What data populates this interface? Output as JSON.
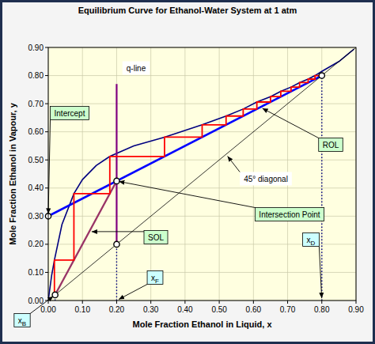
{
  "chart_data": {
    "type": "line",
    "title": "Equilibrium Curve for Ethanol-Water System at 1 atm",
    "x_label": "Mole Fraction Ethanol in Liquid, x",
    "y_label": "Mole Fraction Ethanol in Vapour, y",
    "xlim": [
      0,
      0.9
    ],
    "ylim": [
      0,
      0.9
    ],
    "xticks": [
      {
        "value": 0,
        "label": "0.00"
      },
      {
        "value": 0.1,
        "label": "0.10"
      },
      {
        "value": 0.2,
        "label": "0.20"
      },
      {
        "value": 0.3,
        "label": "0.30"
      },
      {
        "value": 0.4,
        "label": "0.40"
      },
      {
        "value": 0.5,
        "label": "0.50"
      },
      {
        "value": 0.6,
        "label": "0.60"
      },
      {
        "value": 0.7,
        "label": "0.70"
      },
      {
        "value": 0.8,
        "label": "0.80"
      },
      {
        "value": 0.9,
        "label": "0.90"
      }
    ],
    "yticks": [
      {
        "value": 0,
        "label": "0.00"
      },
      {
        "value": 0.1,
        "label": "0.10"
      },
      {
        "value": 0.2,
        "label": "0.20"
      },
      {
        "value": 0.3,
        "label": "0.30"
      },
      {
        "value": 0.4,
        "label": "0.40"
      },
      {
        "value": 0.5,
        "label": "0.50"
      },
      {
        "value": 0.6,
        "label": "0.60"
      },
      {
        "value": 0.7,
        "label": "0.70"
      },
      {
        "value": 0.8,
        "label": "0.80"
      },
      {
        "value": 0.9,
        "label": "0.90"
      }
    ],
    "grid": true,
    "series": [
      {
        "type": "line",
        "color": "#000080",
        "line_style": "solid",
        "x": [
          0,
          0.01,
          0.018,
          0.04,
          0.075,
          0.1,
          0.14,
          0.18,
          0.25,
          0.34,
          0.45,
          0.52,
          0.57,
          0.61,
          0.65,
          0.68,
          0.71,
          0.735,
          0.76,
          0.78,
          0.8,
          0.85,
          0.894
        ],
        "values": [
          0,
          0.09,
          0.144,
          0.27,
          0.38,
          0.43,
          0.48,
          0.5125,
          0.55,
          0.581,
          0.625,
          0.656,
          0.681,
          0.706,
          0.725,
          0.744,
          0.759,
          0.775,
          0.7875,
          0.8,
          0.815,
          0.85,
          0.894
        ]
      },
      {
        "type": "line",
        "color": "#0000ff",
        "line_style": "solid",
        "x": [
          0,
          0.8
        ],
        "values": [
          0.3,
          0.8
        ]
      },
      {
        "type": "line",
        "color": "#993366",
        "line_style": "solid",
        "x": [
          0.02,
          0.2
        ],
        "values": [
          0.02,
          0.425
        ]
      },
      {
        "type": "line",
        "color": "#800080",
        "line_style": "solid",
        "x": [
          0.2,
          0.2
        ],
        "values": [
          0.2,
          0.77
        ]
      },
      {
        "type": "line",
        "color": "#000000",
        "line_style": "solid",
        "x": [
          0,
          0.9
        ],
        "values": [
          0,
          0.9
        ]
      },
      {
        "type": "line",
        "color": "#ff0000",
        "line_style": "solid",
        "x": [
          0.8,
          0.78,
          0.78,
          0.76,
          0.76,
          0.735,
          0.735,
          0.71,
          0.71,
          0.68,
          0.68,
          0.65,
          0.65,
          0.61,
          0.61,
          0.57,
          0.57,
          0.52,
          0.52,
          0.45,
          0.45,
          0.34,
          0.34,
          0.18,
          0.18,
          0.075,
          0.075,
          0.018,
          0.018
        ],
        "values": [
          0.8,
          0.8,
          0.7875,
          0.7875,
          0.775,
          0.775,
          0.759,
          0.759,
          0.744,
          0.744,
          0.725,
          0.725,
          0.706,
          0.706,
          0.681,
          0.681,
          0.656,
          0.656,
          0.625,
          0.625,
          0.581,
          0.581,
          0.5125,
          0.5125,
          0.38,
          0.38,
          0.144,
          0.144,
          0.02
        ]
      },
      {
        "type": "line",
        "color": "#000080",
        "line_style": "dotted",
        "x": [
          0.02,
          0.02
        ],
        "values": [
          0,
          0.02
        ]
      },
      {
        "type": "line",
        "color": "#000080",
        "line_style": "dotted",
        "x": [
          0.2,
          0.2
        ],
        "values": [
          0,
          0.2
        ]
      },
      {
        "type": "line",
        "color": "#000080",
        "line_style": "dotted",
        "x": [
          0.8,
          0.8
        ],
        "values": [
          0,
          0.8
        ]
      },
      {
        "type": "scatter",
        "color": "#000000",
        "marker": "circle",
        "x": [
          0,
          0.2,
          0.2,
          0.8,
          0.02
        ],
        "values": [
          0.3,
          0.425,
          0.2,
          0.8,
          0.02
        ]
      }
    ],
    "annotations": [
      {
        "text": "Intercept",
        "x": 0,
        "y": 0.3,
        "color": "#ccffcc"
      },
      {
        "text": "q-line",
        "color": "#ffffff"
      },
      {
        "text": "ROL",
        "x": 0.62,
        "y": 0.6875,
        "color": "#ccffcc"
      },
      {
        "text": "45° diagonal",
        "x": 0.52,
        "y": 0.52,
        "color": "#ffffff"
      },
      {
        "text": "Intersection Point",
        "x": 0.2,
        "y": 0.425,
        "color": "#ccffcc"
      },
      {
        "text": "SOL",
        "x": 0.12,
        "y": 0.245,
        "color": "#ccffcc"
      },
      {
        "text": "xF",
        "x": 0.2,
        "y": 0,
        "color": "#ccffff"
      },
      {
        "text": "xD",
        "x": 0.8,
        "y": 0,
        "color": "#ccffff"
      },
      {
        "text": "xB",
        "x": 0.02,
        "y": 0.02,
        "color": "#ccffff"
      }
    ]
  }
}
